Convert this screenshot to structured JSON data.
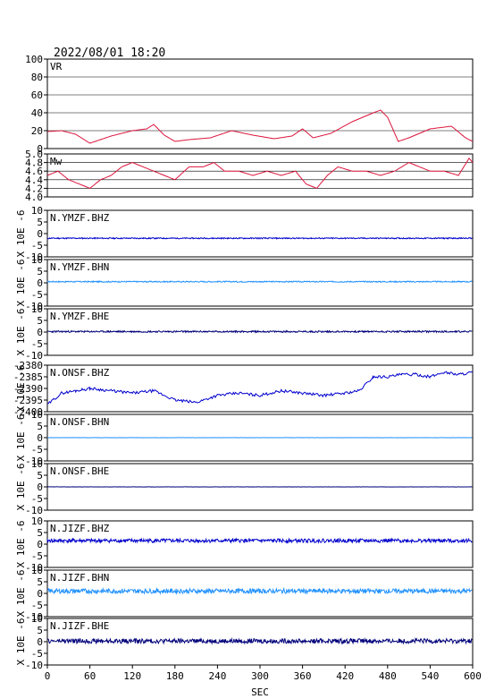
{
  "header": {
    "timestamp": "2022/08/01 18:20"
  },
  "colors": {
    "frame": "#000000",
    "vr": "#dc143c",
    "mw": "#dc143c",
    "bhz": "#0000cd",
    "bhn": "#1e90ff",
    "bhe": "#00007a"
  },
  "chart_data": [
    {
      "type": "line",
      "label": "VR",
      "ylim": [
        0,
        100
      ],
      "ticks": [
        "0",
        "20",
        "40",
        "60",
        "80",
        "100"
      ],
      "grid": true,
      "series": [
        {
          "color_key": "vr",
          "x": [
            0,
            20,
            40,
            60,
            90,
            120,
            140,
            150,
            165,
            180,
            200,
            230,
            260,
            290,
            320,
            345,
            360,
            375,
            400,
            430,
            460,
            470,
            480,
            495,
            510,
            540,
            570,
            590,
            600
          ],
          "y": [
            19,
            20,
            16,
            6,
            14,
            20,
            22,
            27,
            15,
            8,
            10,
            12,
            20,
            15,
            11,
            14,
            22,
            12,
            17,
            30,
            40,
            43,
            35,
            8,
            12,
            22,
            25,
            12,
            8
          ]
        }
      ]
    },
    {
      "type": "line",
      "label": "Mw",
      "ylim": [
        4.0,
        5.0
      ],
      "ticks": [
        "4.0",
        "4.2",
        "4.4",
        "4.6",
        "4.8",
        "5.0"
      ],
      "grid": true,
      "series": [
        {
          "color_key": "mw",
          "x": [
            0,
            15,
            30,
            45,
            60,
            75,
            90,
            105,
            120,
            135,
            150,
            165,
            180,
            200,
            220,
            235,
            250,
            270,
            290,
            310,
            330,
            350,
            365,
            380,
            395,
            410,
            430,
            450,
            470,
            490,
            510,
            525,
            540,
            560,
            580,
            595,
            600
          ],
          "y": [
            4.5,
            4.6,
            4.4,
            4.3,
            4.2,
            4.4,
            4.5,
            4.7,
            4.8,
            4.7,
            4.6,
            4.5,
            4.4,
            4.7,
            4.7,
            4.8,
            4.6,
            4.6,
            4.5,
            4.6,
            4.5,
            4.6,
            4.3,
            4.2,
            4.5,
            4.7,
            4.6,
            4.6,
            4.5,
            4.6,
            4.8,
            4.7,
            4.6,
            4.6,
            4.5,
            4.9,
            4.8
          ]
        }
      ]
    },
    {
      "type": "line",
      "label": "N.YMZF.BHZ",
      "ylim": [
        -10,
        10
      ],
      "ticks": [
        "-10",
        "-5",
        "0",
        "5",
        "10"
      ],
      "axis_label": "X 10E -6",
      "series": [
        {
          "color_key": "bhz",
          "base": -2,
          "amp": 0.25,
          "seed": 11,
          "x": [
            0,
            600
          ]
        }
      ]
    },
    {
      "type": "line",
      "label": "N.YMZF.BHN",
      "ylim": [
        -10,
        10
      ],
      "ticks": [
        "-10",
        "-5",
        "0",
        "5",
        "10"
      ],
      "axis_label": "X 10E -6",
      "series": [
        {
          "color_key": "bhn",
          "base": 0.5,
          "amp": 0.25,
          "seed": 17,
          "x": [
            0,
            600
          ]
        }
      ]
    },
    {
      "type": "line",
      "label": "N.YMZF.BHE",
      "ylim": [
        -10,
        10
      ],
      "ticks": [
        "-10",
        "-5",
        "0",
        "5",
        "10"
      ],
      "axis_label": "X 10E -6",
      "series": [
        {
          "color_key": "bhe",
          "base": 0.2,
          "amp": 0.35,
          "seed": 23,
          "x": [
            0,
            600
          ]
        }
      ]
    },
    {
      "type": "line",
      "label": "N.ONSF.BHZ",
      "ylim": [
        -2400,
        -2380
      ],
      "ticks": [
        "-2400",
        "-2395",
        "-2390",
        "-2385",
        "-2380"
      ],
      "axis_label": "X 10E -6",
      "series": [
        {
          "color_key": "bhz",
          "seed": 29,
          "x": [
            0,
            20,
            40,
            60,
            90,
            120,
            150,
            180,
            210,
            240,
            270,
            300,
            330,
            360,
            390,
            420,
            440,
            460,
            480,
            500,
            520,
            540,
            560,
            580,
            600
          ],
          "y": [
            -2397,
            -2392,
            -2391,
            -2390,
            -2391,
            -2392,
            -2391,
            -2395,
            -2396,
            -2393,
            -2392,
            -2393,
            -2391,
            -2392,
            -2393,
            -2392,
            -2391,
            -2385,
            -2385,
            -2384,
            -2384,
            -2385,
            -2383,
            -2384,
            -2383
          ]
        }
      ]
    },
    {
      "type": "line",
      "label": "N.ONSF.BHN",
      "ylim": [
        -10,
        10
      ],
      "ticks": [
        "-10",
        "-5",
        "0",
        "5",
        "10"
      ],
      "axis_label": "X 10E -6",
      "series": [
        {
          "color_key": "bhn",
          "base": 0,
          "amp": 0.05,
          "seed": 31,
          "x": [
            0,
            600
          ]
        }
      ]
    },
    {
      "type": "line",
      "label": "N.ONSF.BHE",
      "ylim": [
        -10,
        10
      ],
      "ticks": [
        "-10",
        "-5",
        "0",
        "5",
        "10"
      ],
      "axis_label": "X 10E -6",
      "series": [
        {
          "color_key": "bhe",
          "base": 0,
          "amp": 0.05,
          "seed": 37,
          "x": [
            0,
            600
          ]
        }
      ]
    },
    {
      "type": "line",
      "label": "N.JIZF.BHZ",
      "ylim": [
        -10,
        10
      ],
      "ticks": [
        "-10",
        "-5",
        "0",
        "5",
        "10"
      ],
      "axis_label": "X 10E -6",
      "series": [
        {
          "color_key": "bhz",
          "base": 1.5,
          "amp": 0.8,
          "seed": 41,
          "x": [
            0,
            600
          ]
        }
      ]
    },
    {
      "type": "line",
      "label": "N.JIZF.BHN",
      "ylim": [
        -10,
        10
      ],
      "ticks": [
        "-10",
        "-5",
        "0",
        "5",
        "10"
      ],
      "axis_label": "X 10E -6",
      "series": [
        {
          "color_key": "bhn",
          "base": 1,
          "amp": 1.0,
          "seed": 43,
          "x": [
            0,
            600
          ]
        }
      ]
    },
    {
      "type": "line",
      "label": "N.JIZF.BHE",
      "ylim": [
        -10,
        10
      ],
      "ticks": [
        "-10",
        "-5",
        "0",
        "5",
        "10"
      ],
      "axis_label": "X 10E -6",
      "series": [
        {
          "color_key": "bhe",
          "base": 0.3,
          "amp": 1.0,
          "seed": 47,
          "x": [
            0,
            600
          ]
        }
      ]
    }
  ],
  "xaxis": {
    "label": "SEC",
    "xlim": [
      0,
      600
    ],
    "ticks": [
      "0",
      "60",
      "120",
      "180",
      "240",
      "300",
      "360",
      "420",
      "480",
      "540",
      "600"
    ]
  }
}
